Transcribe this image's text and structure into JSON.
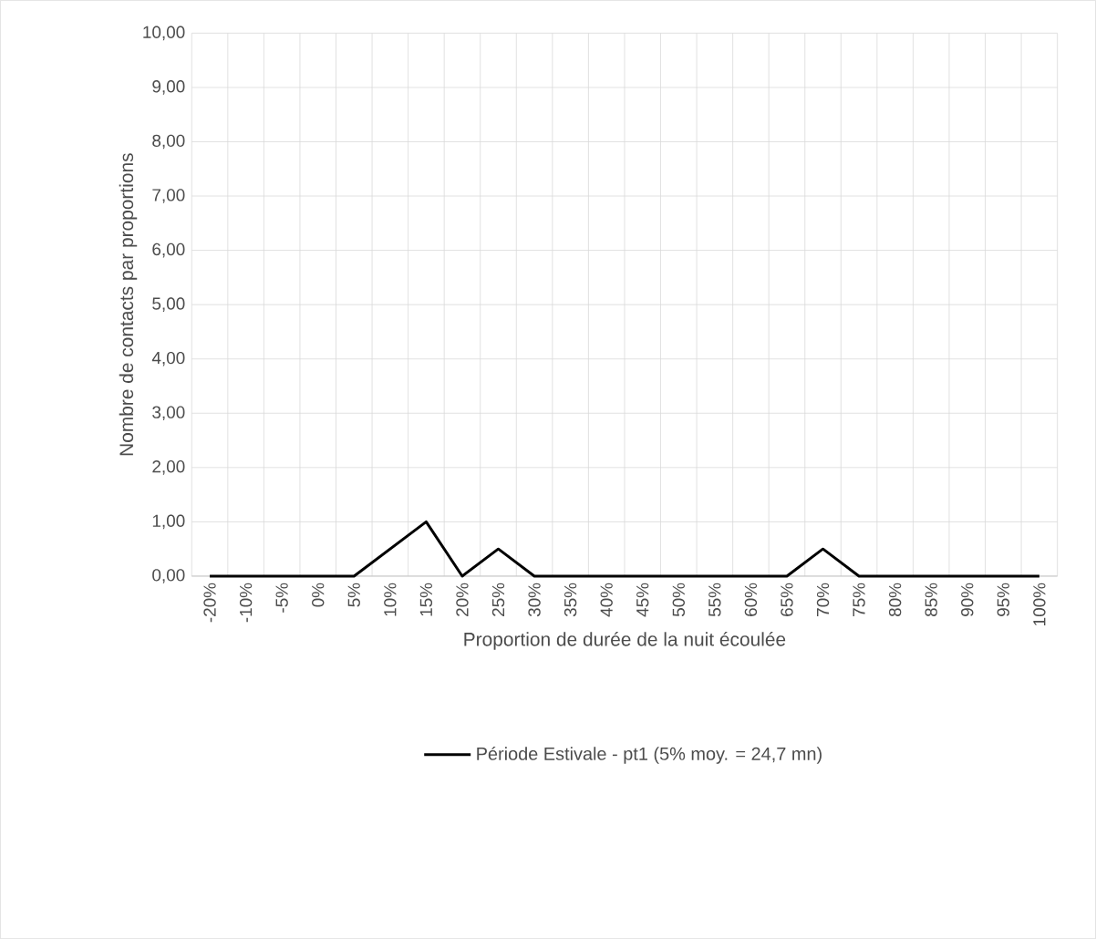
{
  "chart_data": {
    "type": "line",
    "xlabel": "Proportion de durée de la nuit écoulée",
    "ylabel": "Nombre de contacts par proportions",
    "categories": [
      "-20%",
      "-10%",
      "-5%",
      "0%",
      "5%",
      "10%",
      "15%",
      "20%",
      "25%",
      "30%",
      "35%",
      "40%",
      "45%",
      "50%",
      "55%",
      "60%",
      "65%",
      "70%",
      "75%",
      "80%",
      "85%",
      "90%",
      "95%",
      "100%"
    ],
    "series": [
      {
        "name": "Période Estivale - pt1 (5% moy. = 24,7 mn)",
        "color": "#000000",
        "values": [
          0,
          0,
          0,
          0,
          0,
          0.5,
          1,
          0,
          0.5,
          0,
          0,
          0,
          0,
          0,
          0,
          0,
          0,
          0.5,
          0,
          0,
          0,
          0,
          0,
          0
        ]
      }
    ],
    "ylim": [
      0,
      10
    ],
    "yticks": [
      {
        "value": 0,
        "label": "0,00"
      },
      {
        "value": 1,
        "label": "1,00"
      },
      {
        "value": 2,
        "label": "2,00"
      },
      {
        "value": 3,
        "label": "3,00"
      },
      {
        "value": 4,
        "label": "4,00"
      },
      {
        "value": 5,
        "label": "5,00"
      },
      {
        "value": 6,
        "label": "6,00"
      },
      {
        "value": 7,
        "label": "7,00"
      },
      {
        "value": 8,
        "label": "8,00"
      },
      {
        "value": 9,
        "label": "9,00"
      },
      {
        "value": 10,
        "label": "10,00"
      }
    ],
    "grid": true,
    "legend": "bottom",
    "marker": "none",
    "line_style": "solid"
  }
}
